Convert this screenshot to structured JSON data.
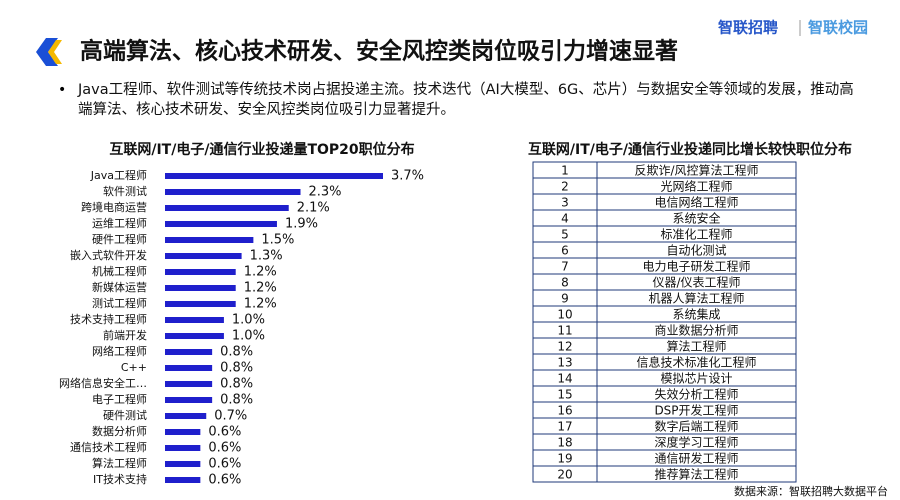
{
  "header": {
    "title": "高端算法、核心技术研发、安全风控类岗位吸引力增速显著",
    "logo_left": "智联招聘",
    "logo_right": "智联校园"
  },
  "bullet": "Java工程师、软件测试等传统技术岗占据投递主流。技术迭代（AI大模型、6G、芯片）与数据安全等领域的发展，推动高端算法、核心技术研发、安全风控类岗位吸引力显著提升。",
  "chart_data": {
    "type": "bar",
    "orientation": "horizontal",
    "title": "互联网/IT/电子/通信行业投递量TOP20职位分布",
    "color": "#1f1fcc",
    "categories": [
      "Java工程师",
      "软件测试",
      "跨境电商运营",
      "运维工程师",
      "硬件工程师",
      "嵌入式软件开发",
      "机械工程师",
      "新媒体运营",
      "测试工程师",
      "技术支持工程师",
      "前端开发",
      "网络工程师",
      "C++",
      "网络信息安全工…",
      "电子工程师",
      "硬件测试",
      "数据分析师",
      "通信技术工程师",
      "算法工程师",
      "IT技术支持"
    ],
    "values": [
      3.7,
      2.3,
      2.1,
      1.9,
      1.5,
      1.3,
      1.2,
      1.2,
      1.2,
      1.0,
      1.0,
      0.8,
      0.8,
      0.8,
      0.8,
      0.7,
      0.6,
      0.6,
      0.6,
      0.6
    ],
    "value_labels": [
      "3.7%",
      "2.3%",
      "2.1%",
      "1.9%",
      "1.5%",
      "1.3%",
      "1.2%",
      "1.2%",
      "1.2%",
      "1.0%",
      "1.0%",
      "0.8%",
      "0.8%",
      "0.8%",
      "0.8%",
      "0.7%",
      "0.6%",
      "0.6%",
      "0.6%",
      "0.6%"
    ]
  },
  "table": {
    "title": "互联网/IT/电子/通信行业投递同比增长较快职位分布",
    "rows": [
      [
        1,
        "反欺诈/风控算法工程师"
      ],
      [
        2,
        "光网络工程师"
      ],
      [
        3,
        "电信网络工程师"
      ],
      [
        4,
        "系统安全"
      ],
      [
        5,
        "标准化工程师"
      ],
      [
        6,
        "自动化测试"
      ],
      [
        7,
        "电力电子研发工程师"
      ],
      [
        8,
        "仪器/仪表工程师"
      ],
      [
        9,
        "机器人算法工程师"
      ],
      [
        10,
        "系统集成"
      ],
      [
        11,
        "商业数据分析师"
      ],
      [
        12,
        "算法工程师"
      ],
      [
        13,
        "信息技术标准化工程师"
      ],
      [
        14,
        "模拟芯片设计"
      ],
      [
        15,
        "失效分析工程师"
      ],
      [
        16,
        "DSP开发工程师"
      ],
      [
        17,
        "数字后端工程师"
      ],
      [
        18,
        "深度学习工程师"
      ],
      [
        19,
        "通信研发工程师"
      ],
      [
        20,
        "推荐算法工程师"
      ]
    ]
  },
  "source": "数据来源：智联招聘大数据平台"
}
